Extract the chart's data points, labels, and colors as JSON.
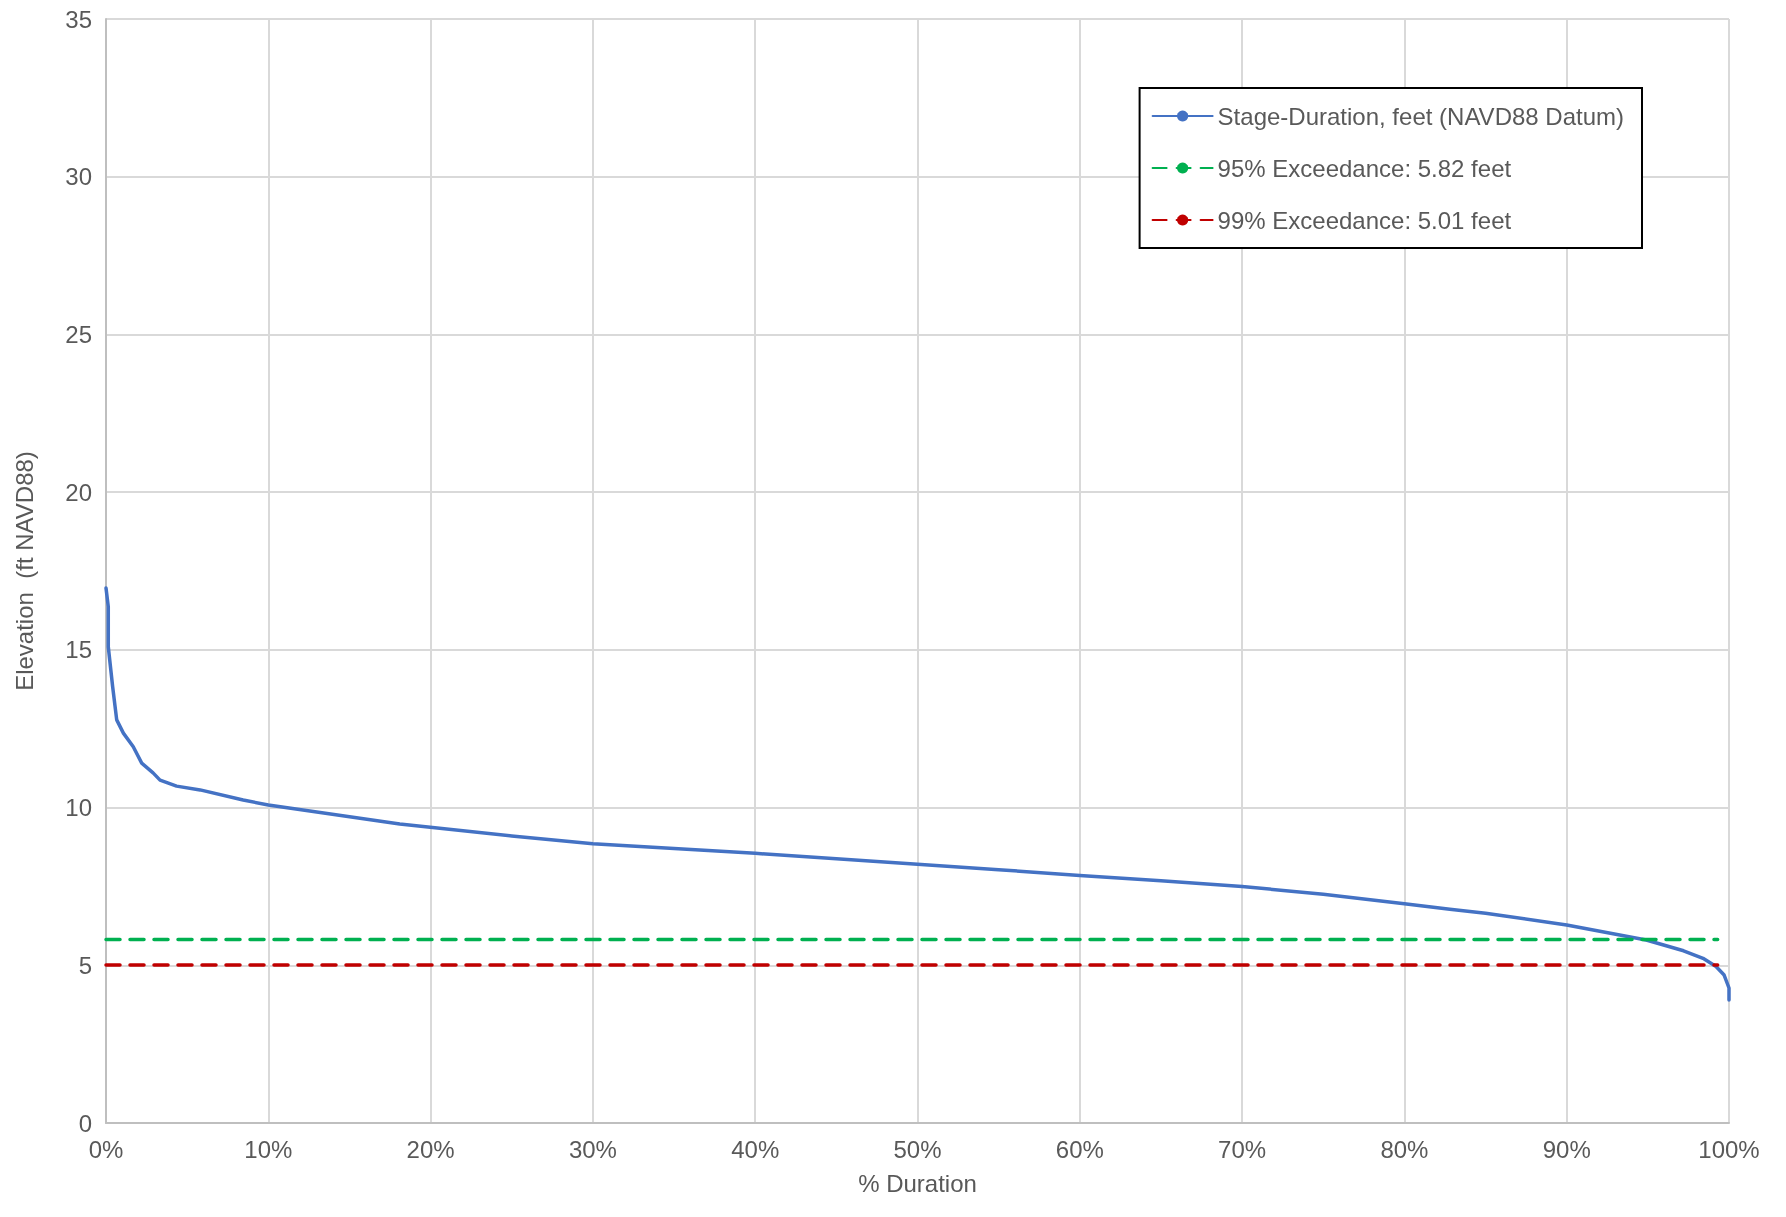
{
  "chart_data": {
    "type": "line",
    "xlabel": "% Duration",
    "ylabel": "Elevation  (ft NAVD88)",
    "xlim": [
      0,
      100
    ],
    "xticks": [
      {
        "value": 0,
        "label": "0%"
      },
      {
        "value": 10,
        "label": "10%"
      },
      {
        "value": 20,
        "label": "20%"
      },
      {
        "value": 30,
        "label": "30%"
      },
      {
        "value": 40,
        "label": "40%"
      },
      {
        "value": 50,
        "label": "50%"
      },
      {
        "value": 60,
        "label": "60%"
      },
      {
        "value": 70,
        "label": "70%"
      },
      {
        "value": 80,
        "label": "80%"
      },
      {
        "value": 90,
        "label": "90%"
      },
      {
        "value": 100,
        "label": "100%"
      }
    ],
    "ylim": [
      0,
      35
    ],
    "yticks": [
      0,
      5,
      10,
      15,
      20,
      25,
      30,
      35
    ],
    "grid": true,
    "legend": "top right",
    "marker": "none",
    "series": [
      {
        "name": "Stage-Duration, feet (NAVD88 Datum)",
        "color": "#4472c4",
        "line_style": "solid",
        "x": [
          0,
          0.14,
          0.14,
          0.41,
          0.66,
          1.07,
          1.68,
          2.2,
          2.9,
          3.33,
          4.35,
          5.8,
          8.45,
          10,
          18.1,
          25,
          30,
          35,
          40,
          45,
          50,
          55,
          60,
          65,
          70,
          75,
          80,
          82.8,
          85,
          90,
          94.9,
          97.2,
          98.4,
          99.2,
          99.7,
          100,
          100
        ],
        "values": [
          16.96,
          16.37,
          15.1,
          13.83,
          12.78,
          12.36,
          11.93,
          11.41,
          11.1,
          10.87,
          10.68,
          10.56,
          10.24,
          10.08,
          9.48,
          9.1,
          8.85,
          8.7,
          8.55,
          8.38,
          8.2,
          8.03,
          7.85,
          7.68,
          7.5,
          7.25,
          6.95,
          6.78,
          6.65,
          6.28,
          5.8,
          5.46,
          5.22,
          4.96,
          4.69,
          4.28,
          3.9
        ]
      },
      {
        "name": "95% Exceedance: 5.82 feet",
        "color": "#00b050",
        "line_style": "dashed",
        "x": [
          0,
          99.3
        ],
        "values": [
          5.82,
          5.82
        ]
      },
      {
        "name": "99% Exceedance: 5.01 feet",
        "color": "#c00000",
        "line_style": "dashed",
        "x": [
          0,
          99.3
        ],
        "values": [
          5.01,
          5.01
        ]
      }
    ]
  }
}
